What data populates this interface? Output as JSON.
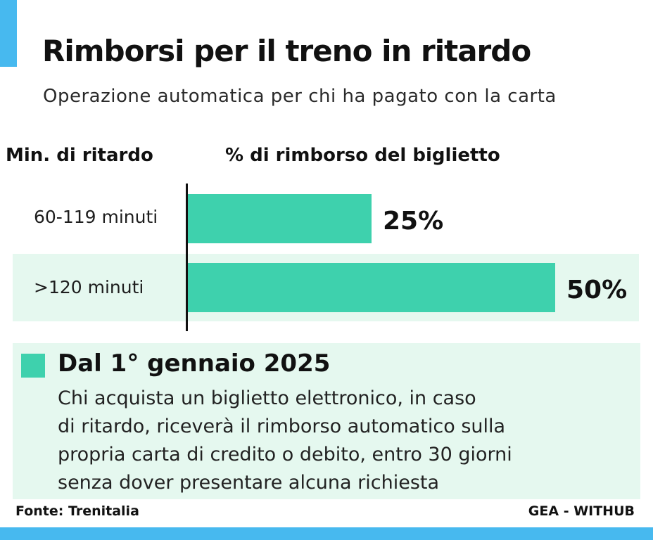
{
  "title": "Rimborsi per il treno in ritardo",
  "subtitle": "Operazione automatica per chi ha pagato con la carta",
  "column_headers": {
    "category": "Min. di ritardo",
    "value": "% di rimborso del biglietto"
  },
  "chart_data": {
    "type": "bar",
    "orientation": "horizontal",
    "categories": [
      "60-119 minuti",
      ">120 minuti"
    ],
    "values": [
      25,
      50
    ],
    "value_labels": [
      "25%",
      "50%"
    ],
    "xlim": [
      0,
      50
    ],
    "grid": false,
    "bar_color": "#3ed1ad"
  },
  "note": {
    "title": "Dal 1° gennaio 2025",
    "lines": [
      "Chi acquista un biglietto elettronico, in caso",
      "di ritardo, riceverà il rimborso automatico sulla",
      "propria carta di credito o debito, entro 30 giorni",
      "senza dover presentare alcuna richiesta"
    ]
  },
  "source": "Fonte: Trenitalia",
  "credit": "GEA - WITHUB",
  "colors": {
    "accent_blue": "#47b9ef",
    "bar_green": "#3ed1ad",
    "band_green": "#e5f8ef",
    "text": "#111111"
  }
}
